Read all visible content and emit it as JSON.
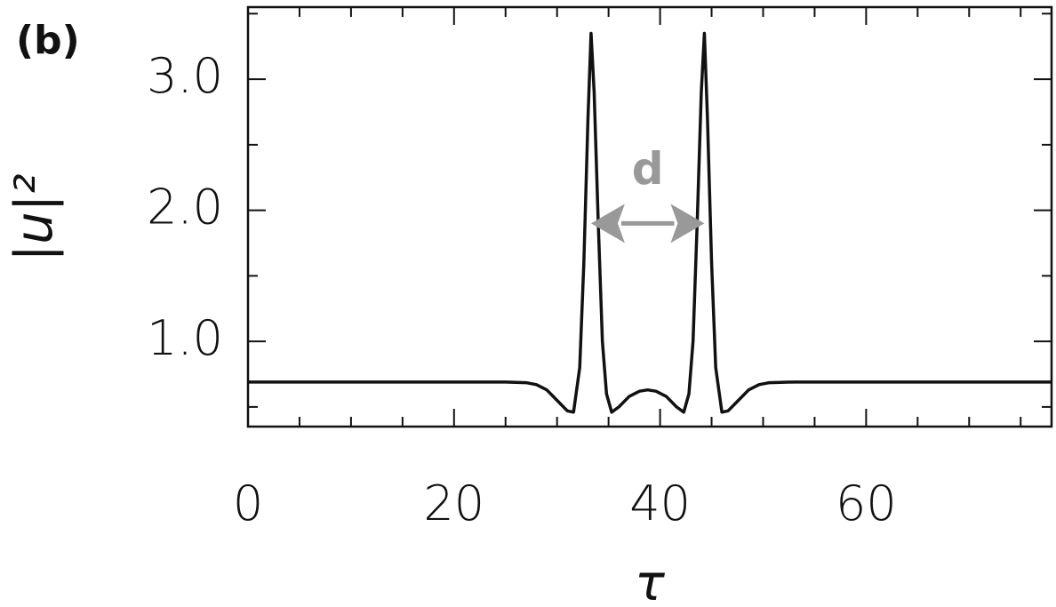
{
  "chart_data": {
    "type": "line",
    "panel_label": "(b)",
    "xlabel": "τ",
    "ylabel": "|u|²",
    "x": [
      0,
      10,
      20,
      25,
      27,
      28,
      29,
      30,
      31,
      31.6,
      32.2,
      32.6,
      33,
      33.3,
      33.6,
      34,
      34.4,
      34.8,
      35.3,
      36,
      37,
      38,
      38.8,
      39.6,
      40.6,
      41.6,
      42.3,
      42.8,
      43.2,
      43.6,
      44,
      44.3,
      44.6,
      45,
      45.4,
      46,
      46.6,
      47.6,
      48.6,
      49.6,
      50.6,
      53,
      60,
      70,
      78
    ],
    "series": [
      {
        "color": "#111111",
        "values": [
          0.69,
          0.69,
          0.69,
          0.69,
          0.685,
          0.67,
          0.63,
          0.55,
          0.47,
          0.46,
          0.8,
          1.6,
          2.7,
          3.35,
          2.9,
          1.9,
          1.0,
          0.6,
          0.46,
          0.5,
          0.58,
          0.62,
          0.63,
          0.62,
          0.58,
          0.5,
          0.46,
          0.6,
          1.0,
          1.9,
          2.9,
          3.35,
          2.7,
          1.6,
          0.8,
          0.46,
          0.47,
          0.55,
          0.63,
          0.67,
          0.685,
          0.69,
          0.69,
          0.69,
          0.69
        ]
      }
    ],
    "xlim": [
      0,
      78
    ],
    "ylim": [
      0.35,
      3.55
    ],
    "xticks": [
      0,
      20,
      40,
      60
    ],
    "yticks": [
      {
        "value": 1,
        "label": "1.0"
      },
      {
        "value": 2,
        "label": "2.0"
      },
      {
        "value": 3,
        "label": "3.0"
      }
    ],
    "xticks_minor": [
      5,
      10,
      15,
      25,
      30,
      35,
      45,
      50,
      55,
      65,
      70,
      75
    ],
    "yticks_minor": [
      0.5,
      1.5,
      2.5,
      3.5
    ],
    "annotation": {
      "text": "d",
      "x": [
        33.3,
        44.3
      ],
      "y": 1.9,
      "color": "#999999"
    }
  }
}
